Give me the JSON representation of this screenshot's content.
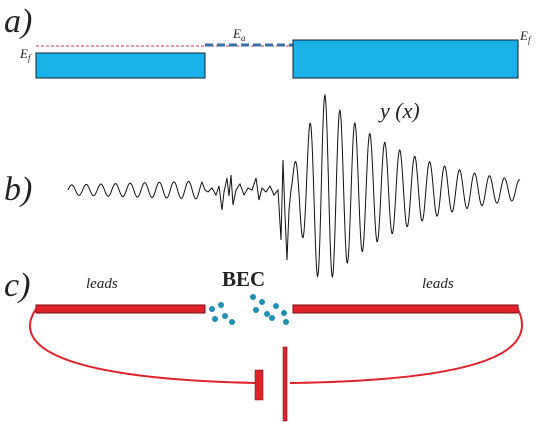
{
  "panels": {
    "a": {
      "label": "a)"
    },
    "b": {
      "label": "b)"
    },
    "c": {
      "label": "c)"
    }
  },
  "energy_levels": {
    "left": "E",
    "left_sub": "f",
    "barrier": "E",
    "barrier_sub": "a",
    "right": "E",
    "right_sub": "f"
  },
  "wavefunction": {
    "label": "y (x)"
  },
  "circuit": {
    "left_leads": "leads",
    "right_leads": "leads",
    "condensate": "BEC"
  },
  "colors": {
    "electrode_fill": "#1ab0e8",
    "lead_red": "#e0232b",
    "dot_teal": "#1f8fb5",
    "fermi_line": "#c8385a",
    "barrier_dash": "#3a6ea8"
  }
}
